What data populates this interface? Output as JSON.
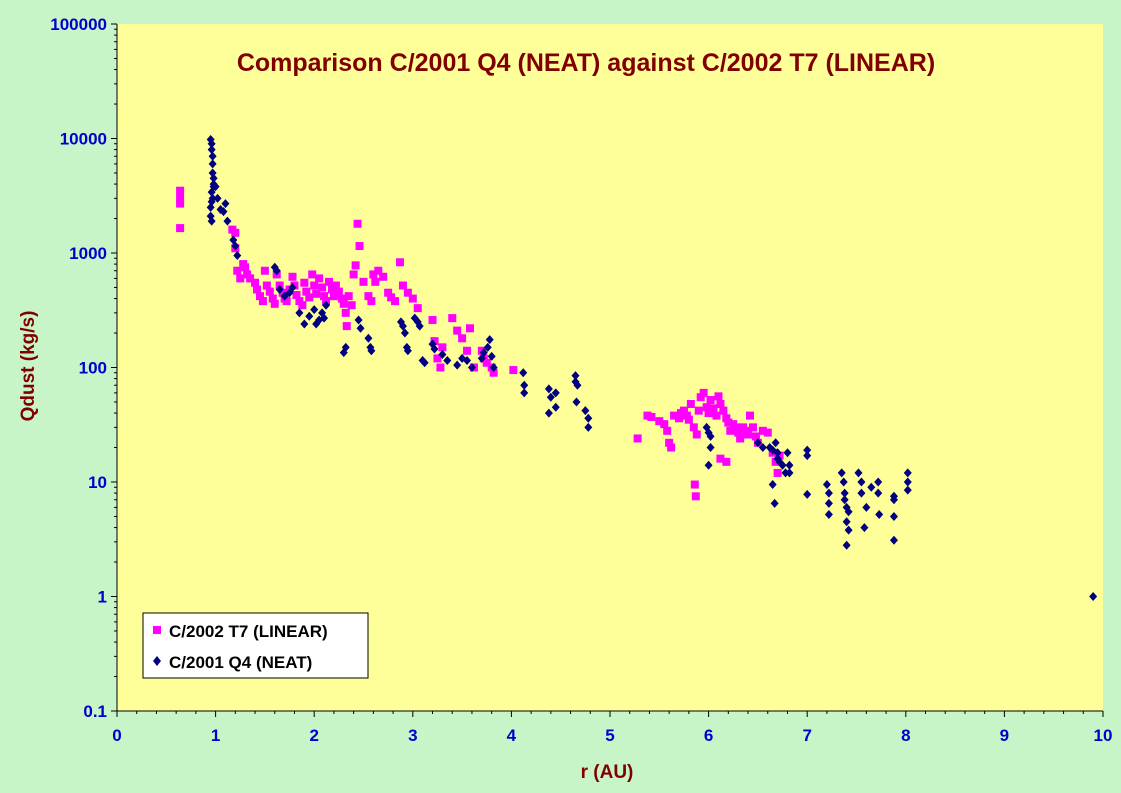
{
  "chart_data": {
    "type": "scatter",
    "title": "Comparison C/2001 Q4 (NEAT) against C/2002 T7 (LINEAR)",
    "xlabel": "r (AU)",
    "ylabel": "Qdust (kg/s)",
    "xlim": [
      0,
      10
    ],
    "ylim": [
      0.1,
      100000
    ],
    "yscale": "log",
    "x_ticks": [
      "0",
      "1",
      "2",
      "3",
      "4",
      "5",
      "6",
      "7",
      "8",
      "9",
      "10"
    ],
    "y_ticks": [
      "0.1",
      "1",
      "10",
      "100",
      "1000",
      "10000",
      "100000"
    ],
    "grid": false,
    "legend_position": "bottom-left",
    "colors": {
      "plot_background": "#ffff99",
      "outer_background": "#c8f5c8",
      "linear": "#ff00ff",
      "neat": "#000080",
      "title": "#800000",
      "ticks": "#0000cc"
    },
    "series": [
      {
        "name": "C/2002 T7 (LINEAR)",
        "marker": "square",
        "color": "#ff00ff",
        "points": [
          [
            0.64,
            3500
          ],
          [
            0.64,
            3000
          ],
          [
            0.64,
            2700
          ],
          [
            0.64,
            1650
          ],
          [
            1.17,
            1600
          ],
          [
            1.2,
            1500
          ],
          [
            1.2,
            1100
          ],
          [
            1.22,
            700
          ],
          [
            1.25,
            600
          ],
          [
            1.28,
            800
          ],
          [
            1.3,
            750
          ],
          [
            1.32,
            650
          ],
          [
            1.35,
            600
          ],
          [
            1.4,
            550
          ],
          [
            1.42,
            480
          ],
          [
            1.45,
            420
          ],
          [
            1.48,
            380
          ],
          [
            1.5,
            700
          ],
          [
            1.52,
            520
          ],
          [
            1.55,
            460
          ],
          [
            1.58,
            400
          ],
          [
            1.6,
            360
          ],
          [
            1.62,
            650
          ],
          [
            1.65,
            520
          ],
          [
            1.68,
            450
          ],
          [
            1.7,
            400
          ],
          [
            1.72,
            380
          ],
          [
            1.75,
            480
          ],
          [
            1.78,
            620
          ],
          [
            1.8,
            520
          ],
          [
            1.82,
            430
          ],
          [
            1.85,
            380
          ],
          [
            1.88,
            350
          ],
          [
            1.9,
            550
          ],
          [
            1.92,
            460
          ],
          [
            1.95,
            410
          ],
          [
            1.98,
            650
          ],
          [
            2.0,
            520
          ],
          [
            2.02,
            440
          ],
          [
            2.05,
            600
          ],
          [
            2.08,
            500
          ],
          [
            2.1,
            420
          ],
          [
            2.12,
            380
          ],
          [
            2.15,
            560
          ],
          [
            2.18,
            480
          ],
          [
            2.2,
            420
          ],
          [
            2.22,
            520
          ],
          [
            2.25,
            460
          ],
          [
            2.28,
            400
          ],
          [
            2.3,
            360
          ],
          [
            2.32,
            300
          ],
          [
            2.33,
            230
          ],
          [
            2.35,
            420
          ],
          [
            2.38,
            350
          ],
          [
            2.4,
            650
          ],
          [
            2.42,
            780
          ],
          [
            2.44,
            1800
          ],
          [
            2.46,
            1150
          ],
          [
            2.5,
            560
          ],
          [
            2.55,
            420
          ],
          [
            2.58,
            380
          ],
          [
            2.6,
            650
          ],
          [
            2.62,
            560
          ],
          [
            2.65,
            700
          ],
          [
            2.7,
            620
          ],
          [
            2.75,
            450
          ],
          [
            2.78,
            410
          ],
          [
            2.82,
            380
          ],
          [
            2.87,
            830
          ],
          [
            2.9,
            520
          ],
          [
            2.95,
            450
          ],
          [
            3.0,
            400
          ],
          [
            3.05,
            330
          ],
          [
            3.2,
            260
          ],
          [
            3.22,
            170
          ],
          [
            3.25,
            120
          ],
          [
            3.28,
            100
          ],
          [
            3.3,
            150
          ],
          [
            3.4,
            270
          ],
          [
            3.45,
            210
          ],
          [
            3.5,
            180
          ],
          [
            3.55,
            140
          ],
          [
            3.58,
            220
          ],
          [
            3.62,
            100
          ],
          [
            3.7,
            140
          ],
          [
            3.72,
            120
          ],
          [
            3.75,
            110
          ],
          [
            3.8,
            100
          ],
          [
            3.82,
            90
          ],
          [
            4.02,
            95
          ],
          [
            5.28,
            24
          ],
          [
            5.38,
            38
          ],
          [
            5.42,
            37
          ],
          [
            5.5,
            34
          ],
          [
            5.55,
            32
          ],
          [
            5.58,
            28
          ],
          [
            5.6,
            22
          ],
          [
            5.62,
            20
          ],
          [
            5.65,
            38
          ],
          [
            5.7,
            36
          ],
          [
            5.72,
            40
          ],
          [
            5.75,
            42
          ],
          [
            5.78,
            38
          ],
          [
            5.8,
            35
          ],
          [
            5.82,
            48
          ],
          [
            5.85,
            30
          ],
          [
            5.86,
            9.5
          ],
          [
            5.87,
            7.5
          ],
          [
            5.88,
            26
          ],
          [
            5.9,
            42
          ],
          [
            5.92,
            55
          ],
          [
            5.95,
            60
          ],
          [
            5.98,
            45
          ],
          [
            6.0,
            40
          ],
          [
            6.02,
            52
          ],
          [
            6.05,
            44
          ],
          [
            6.08,
            38
          ],
          [
            6.1,
            56
          ],
          [
            6.12,
            48
          ],
          [
            6.15,
            42
          ],
          [
            6.18,
            36
          ],
          [
            6.2,
            33
          ],
          [
            6.22,
            28
          ],
          [
            6.25,
            32
          ],
          [
            6.28,
            30
          ],
          [
            6.3,
            27
          ],
          [
            6.32,
            24
          ],
          [
            6.35,
            30
          ],
          [
            6.38,
            28
          ],
          [
            6.4,
            26
          ],
          [
            6.42,
            38
          ],
          [
            6.45,
            30
          ],
          [
            6.48,
            25
          ],
          [
            6.5,
            22
          ],
          [
            6.55,
            28
          ],
          [
            6.6,
            27
          ],
          [
            6.65,
            18
          ],
          [
            6.68,
            15
          ],
          [
            6.7,
            12
          ],
          [
            6.72,
            17
          ],
          [
            6.12,
            16
          ],
          [
            6.18,
            15
          ]
        ]
      },
      {
        "name": "C/2001 Q4 (NEAT)",
        "marker": "diamond",
        "color": "#000080",
        "points": [
          [
            0.95,
            9800
          ],
          [
            0.96,
            9000
          ],
          [
            0.96,
            8000
          ],
          [
            0.97,
            7000
          ],
          [
            0.97,
            6000
          ],
          [
            0.97,
            5000
          ],
          [
            0.98,
            4500
          ],
          [
            0.98,
            4000
          ],
          [
            0.98,
            3800
          ],
          [
            0.96,
            3400
          ],
          [
            0.97,
            3000
          ],
          [
            0.96,
            2800
          ],
          [
            0.95,
            2500
          ],
          [
            0.95,
            2100
          ],
          [
            0.96,
            1900
          ],
          [
            1.0,
            3800
          ],
          [
            1.02,
            3000
          ],
          [
            1.05,
            2400
          ],
          [
            1.08,
            2300
          ],
          [
            1.1,
            2700
          ],
          [
            1.12,
            1900
          ],
          [
            1.18,
            1300
          ],
          [
            1.2,
            1150
          ],
          [
            1.22,
            950
          ],
          [
            1.6,
            750
          ],
          [
            1.62,
            700
          ],
          [
            1.65,
            480
          ],
          [
            1.7,
            420
          ],
          [
            1.75,
            450
          ],
          [
            1.78,
            500
          ],
          [
            1.85,
            300
          ],
          [
            1.9,
            240
          ],
          [
            1.95,
            280
          ],
          [
            2.0,
            320
          ],
          [
            2.02,
            240
          ],
          [
            2.05,
            260
          ],
          [
            2.08,
            300
          ],
          [
            2.1,
            270
          ],
          [
            2.12,
            350
          ],
          [
            2.3,
            135
          ],
          [
            2.32,
            150
          ],
          [
            2.45,
            260
          ],
          [
            2.47,
            220
          ],
          [
            2.55,
            180
          ],
          [
            2.57,
            150
          ],
          [
            2.58,
            140
          ],
          [
            2.88,
            250
          ],
          [
            2.9,
            230
          ],
          [
            2.92,
            200
          ],
          [
            2.94,
            150
          ],
          [
            2.95,
            140
          ],
          [
            3.02,
            270
          ],
          [
            3.05,
            250
          ],
          [
            3.07,
            230
          ],
          [
            3.1,
            115
          ],
          [
            3.12,
            110
          ],
          [
            3.2,
            160
          ],
          [
            3.22,
            145
          ],
          [
            3.3,
            130
          ],
          [
            3.35,
            115
          ],
          [
            3.45,
            105
          ],
          [
            3.5,
            120
          ],
          [
            3.55,
            115
          ],
          [
            3.6,
            100
          ],
          [
            3.7,
            120
          ],
          [
            3.72,
            135
          ],
          [
            3.76,
            150
          ],
          [
            3.78,
            175
          ],
          [
            3.8,
            125
          ],
          [
            3.82,
            100
          ],
          [
            4.12,
            90
          ],
          [
            4.13,
            70
          ],
          [
            4.13,
            60
          ],
          [
            4.38,
            65
          ],
          [
            4.4,
            55
          ],
          [
            4.45,
            60
          ],
          [
            4.38,
            40
          ],
          [
            4.45,
            45
          ],
          [
            4.65,
            85
          ],
          [
            4.65,
            75
          ],
          [
            4.67,
            70
          ],
          [
            4.66,
            50
          ],
          [
            4.75,
            42
          ],
          [
            4.78,
            36
          ],
          [
            4.78,
            30
          ],
          [
            5.98,
            30
          ],
          [
            6.0,
            27
          ],
          [
            6.02,
            25
          ],
          [
            6.02,
            20
          ],
          [
            6.0,
            14
          ],
          [
            6.5,
            22
          ],
          [
            6.55,
            20
          ],
          [
            6.62,
            20
          ],
          [
            6.65,
            19
          ],
          [
            6.68,
            22
          ],
          [
            6.7,
            18
          ],
          [
            6.7,
            16
          ],
          [
            6.72,
            15
          ],
          [
            6.75,
            14
          ],
          [
            6.78,
            12
          ],
          [
            6.65,
            9.5
          ],
          [
            6.67,
            6.5
          ],
          [
            6.8,
            18
          ],
          [
            6.82,
            14
          ],
          [
            6.82,
            12
          ],
          [
            7.0,
            19
          ],
          [
            7.0,
            17
          ],
          [
            7.0,
            7.8
          ],
          [
            7.2,
            9.5
          ],
          [
            7.22,
            8
          ],
          [
            7.22,
            6.5
          ],
          [
            7.22,
            5.2
          ],
          [
            7.35,
            12
          ],
          [
            7.37,
            10
          ],
          [
            7.38,
            8
          ],
          [
            7.38,
            7
          ],
          [
            7.4,
            6
          ],
          [
            7.42,
            5.5
          ],
          [
            7.4,
            4.5
          ],
          [
            7.42,
            3.8
          ],
          [
            7.4,
            2.8
          ],
          [
            7.52,
            12
          ],
          [
            7.55,
            10
          ],
          [
            7.55,
            8
          ],
          [
            7.6,
            6
          ],
          [
            7.58,
            4
          ],
          [
            7.65,
            9
          ],
          [
            7.72,
            10
          ],
          [
            7.72,
            8
          ],
          [
            7.73,
            5.2
          ],
          [
            7.88,
            7.5
          ],
          [
            7.88,
            7
          ],
          [
            7.88,
            5
          ],
          [
            7.88,
            3.1
          ],
          [
            8.02,
            12
          ],
          [
            8.02,
            10
          ],
          [
            8.02,
            8.5
          ],
          [
            9.9,
            1.0
          ]
        ]
      }
    ]
  }
}
